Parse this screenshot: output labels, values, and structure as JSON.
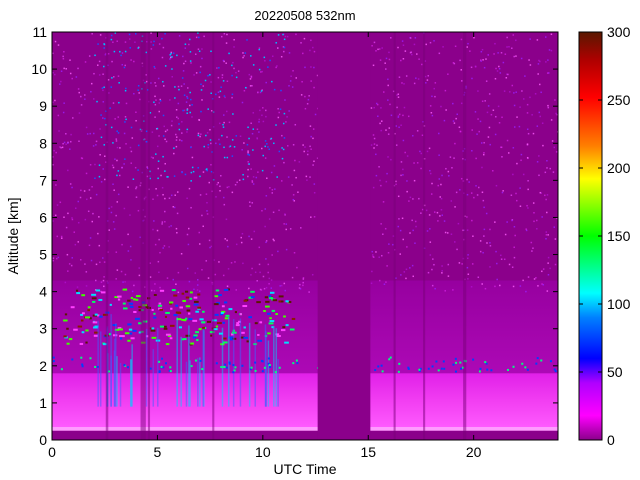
{
  "chart_data": {
    "type": "heatmap",
    "title": "20220508 532nm",
    "xlabel": "UTC Time",
    "ylabel": "Altitude [km]",
    "xlim": [
      0,
      24
    ],
    "ylim": [
      0,
      11
    ],
    "x_ticks": [
      0,
      5,
      10,
      15,
      20
    ],
    "y_ticks": [
      0,
      1,
      2,
      3,
      4,
      5,
      6,
      7,
      8,
      9,
      10,
      11
    ],
    "colorbar": {
      "range": [
        0,
        300
      ],
      "ticks": [
        0,
        50,
        100,
        150,
        200,
        250,
        300
      ],
      "colormap": "jet-like (purple-magenta-blue-cyan-green-yellow-orange-red-brown)"
    },
    "background_color": "#8b008b",
    "no_data_interval_utc": [
      12.6,
      15.1
    ],
    "features": {
      "boundary_layer_top_km_approx": 1.8,
      "cloud_layer_km_approx": [
        2.6,
        4.1
      ],
      "cloud_hours_utc_approx": [
        0.5,
        11.5
      ]
    }
  }
}
